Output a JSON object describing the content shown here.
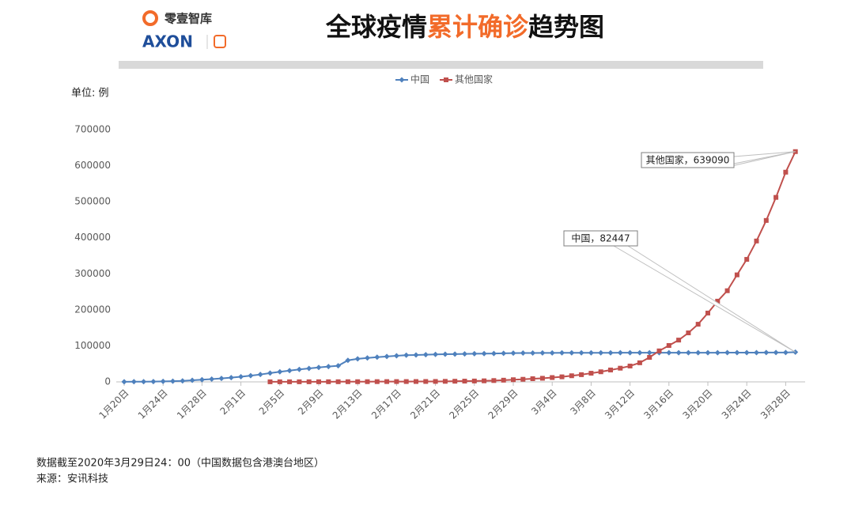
{
  "header": {
    "logo_name": "零壹智库",
    "logo_brand": "AXON"
  },
  "chart_data": {
    "type": "line",
    "title_parts": [
      "全球疫情",
      "累计确诊",
      "趋势图"
    ],
    "unit_label": "单位: 例",
    "categories": [
      "1月20日",
      null,
      null,
      null,
      "1月24日",
      null,
      null,
      null,
      "1月28日",
      null,
      null,
      null,
      "2月1日",
      null,
      null,
      null,
      "2月5日",
      null,
      null,
      null,
      "2月9日",
      null,
      null,
      null,
      "2月13日",
      null,
      null,
      null,
      "2月17日",
      null,
      null,
      null,
      "2月21日",
      null,
      null,
      null,
      "2月25日",
      null,
      null,
      null,
      "2月29日",
      null,
      null,
      null,
      "3月4日",
      null,
      null,
      null,
      "3月8日",
      null,
      null,
      null,
      "3月12日",
      null,
      null,
      null,
      "3月16日",
      null,
      null,
      null,
      "3月20日",
      null,
      null,
      null,
      "3月24日",
      null,
      null,
      null,
      "3月28日",
      null
    ],
    "series": [
      {
        "name": "中国",
        "color": "#4f81bd",
        "values": [
          291,
          440,
          571,
          830,
          1287,
          1975,
          2744,
          4515,
          5974,
          7711,
          9692,
          11791,
          14380,
          17205,
          20438,
          24324,
          28018,
          31161,
          34546,
          37198,
          40171,
          42638,
          44653,
          59804,
          63851,
          66492,
          68500,
          70548,
          72436,
          74185,
          74576,
          75465,
          76288,
          76936,
          77150,
          77658,
          78064,
          78497,
          78824,
          79251,
          79824,
          80026,
          80151,
          80270,
          80409,
          80552,
          80651,
          80695,
          80735,
          80754,
          80778,
          80793,
          80813,
          80824,
          80844,
          80860,
          80881,
          80894,
          80928,
          80967,
          81008,
          81054,
          81093,
          81171,
          81218,
          81285,
          81340,
          81394,
          81470,
          82447
        ]
      },
      {
        "name": "其他国家",
        "color": "#c0504d",
        "values": [
          null,
          null,
          null,
          null,
          null,
          null,
          null,
          null,
          null,
          null,
          null,
          null,
          null,
          null,
          null,
          180,
          200,
          220,
          250,
          290,
          330,
          380,
          420,
          480,
          530,
          600,
          700,
          800,
          850,
          900,
          1000,
          1100,
          1200,
          1500,
          1800,
          2100,
          2400,
          2900,
          3700,
          4700,
          6000,
          7200,
          8800,
          10000,
          12000,
          14000,
          17000,
          20000,
          24000,
          28000,
          33000,
          38000,
          44000,
          53000,
          68000,
          86000,
          101000,
          116000,
          136000,
          160000,
          191000,
          224000,
          253000,
          297000,
          340000,
          391000,
          448000,
          512000,
          582000,
          639090
        ]
      }
    ],
    "ylim": [
      0,
      700000
    ],
    "yticks": [
      0,
      100000,
      200000,
      300000,
      400000,
      500000,
      600000,
      700000
    ],
    "annotations": [
      "中国，82447",
      "其他国家，639090"
    ],
    "notes": [
      "数据截至2020年3月29日24：00（中国数据包含港澳台地区）",
      "来源：安讯科技"
    ]
  }
}
